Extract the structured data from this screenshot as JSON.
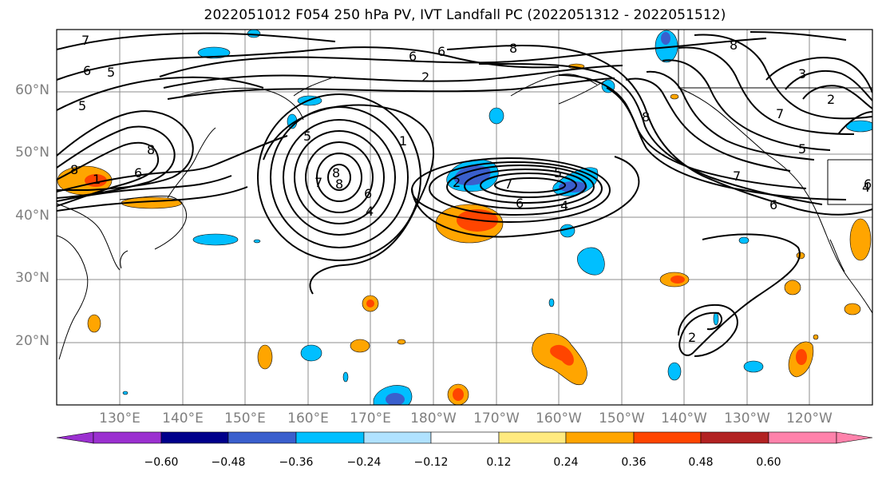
{
  "title": "2022051012 F054 250 hPa PV, IVT Landfall PC (2022051312 - 2022051512)",
  "map": {
    "lat_labels": [
      "60°N",
      "50°N",
      "40°N",
      "30°N",
      "20°N"
    ],
    "lon_labels": [
      "130°E",
      "140°E",
      "150°E",
      "160°E",
      "170°E",
      "180°W",
      "170°W",
      "160°W",
      "150°W",
      "140°W",
      "130°W",
      "120°W"
    ],
    "contour_labels": [
      "7",
      "6",
      "5",
      "5",
      "8",
      "8",
      "1",
      "6",
      "5",
      "8",
      "8",
      "7",
      "6",
      "4",
      "1",
      "6",
      "8",
      "6",
      "2",
      "8",
      "8",
      "2",
      "7",
      "5",
      "6",
      "4",
      "7",
      "6",
      "4",
      "3",
      "2",
      "7",
      "5",
      "2",
      "6"
    ]
  },
  "colorbar": {
    "colors": [
      "#9b30d0",
      "#00008b",
      "#3a5fcd",
      "#00bfff",
      "#b0e2ff",
      "#ffffff",
      "#ffff00",
      "#ffa500",
      "#ff4500",
      "#b22222",
      "#ff82ab"
    ],
    "tick_labels": [
      "−0.60",
      "−0.48",
      "−0.36",
      "−0.24",
      "−0.12",
      "0.12",
      "0.24",
      "0.36",
      "0.48",
      "0.60"
    ]
  }
}
